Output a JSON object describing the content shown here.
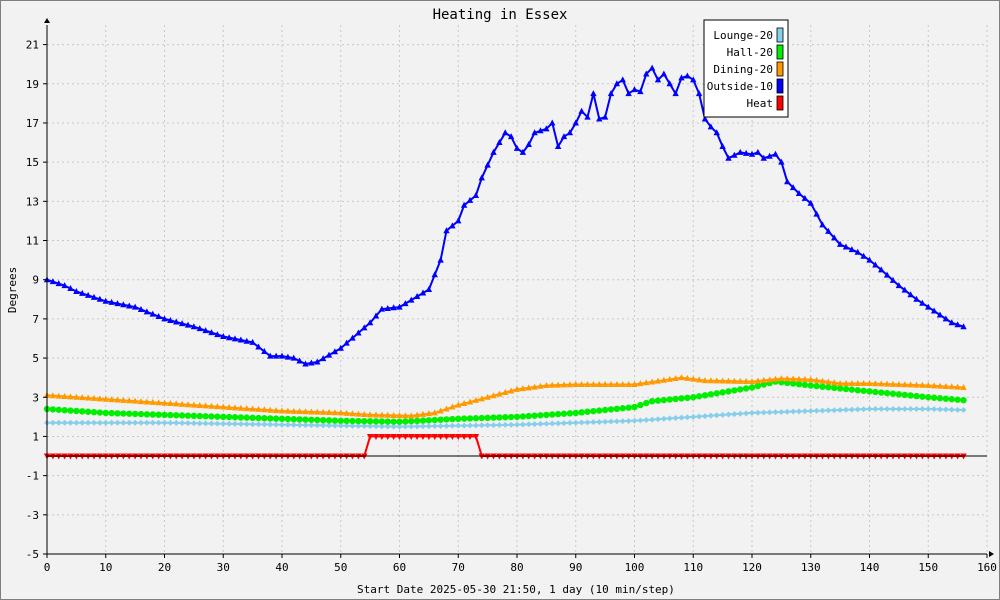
{
  "chart_data": {
    "type": "line",
    "title": "Heating in Essex",
    "xlabel": "Start Date 2025-05-30 21:50, 1 day (10 min/step)",
    "ylabel": "Degrees",
    "xlim": [
      0,
      160
    ],
    "ylim": [
      -5,
      22
    ],
    "x_ticks": [
      0,
      10,
      20,
      30,
      40,
      50,
      60,
      70,
      80,
      90,
      100,
      110,
      120,
      130,
      140,
      150,
      160
    ],
    "y_ticks": [
      -5,
      -3,
      -1,
      1,
      3,
      5,
      7,
      9,
      11,
      13,
      15,
      17,
      19,
      21
    ],
    "grid": true,
    "legend_position": "top-right",
    "series": [
      {
        "name": "Lounge-20",
        "color": "#87ceeb",
        "marker": "diamond",
        "points": [
          [
            0,
            1.7
          ],
          [
            10,
            1.7
          ],
          [
            20,
            1.7
          ],
          [
            30,
            1.65
          ],
          [
            40,
            1.6
          ],
          [
            50,
            1.55
          ],
          [
            60,
            1.5
          ],
          [
            70,
            1.55
          ],
          [
            80,
            1.6
          ],
          [
            90,
            1.7
          ],
          [
            100,
            1.8
          ],
          [
            110,
            2.0
          ],
          [
            120,
            2.2
          ],
          [
            130,
            2.3
          ],
          [
            140,
            2.4
          ],
          [
            150,
            2.4
          ],
          [
            156,
            2.35
          ]
        ]
      },
      {
        "name": "Hall-20",
        "color": "#00ee00",
        "marker": "circle",
        "points": [
          [
            0,
            2.4
          ],
          [
            10,
            2.2
          ],
          [
            20,
            2.1
          ],
          [
            30,
            2.0
          ],
          [
            40,
            1.9
          ],
          [
            50,
            1.8
          ],
          [
            60,
            1.75
          ],
          [
            70,
            1.9
          ],
          [
            80,
            2.0
          ],
          [
            90,
            2.2
          ],
          [
            100,
            2.5
          ],
          [
            103,
            2.8
          ],
          [
            110,
            3.0
          ],
          [
            120,
            3.5
          ],
          [
            124,
            3.8
          ],
          [
            130,
            3.6
          ],
          [
            140,
            3.3
          ],
          [
            150,
            3.0
          ],
          [
            156,
            2.85
          ]
        ]
      },
      {
        "name": "Dining-20",
        "color": "#ff9900",
        "marker": "triangle",
        "points": [
          [
            0,
            3.1
          ],
          [
            10,
            2.9
          ],
          [
            20,
            2.7
          ],
          [
            30,
            2.5
          ],
          [
            40,
            2.3
          ],
          [
            50,
            2.2
          ],
          [
            55,
            2.1
          ],
          [
            62,
            2.05
          ],
          [
            66,
            2.2
          ],
          [
            70,
            2.6
          ],
          [
            75,
            3.0
          ],
          [
            80,
            3.4
          ],
          [
            85,
            3.6
          ],
          [
            90,
            3.65
          ],
          [
            100,
            3.65
          ],
          [
            108,
            4.0
          ],
          [
            112,
            3.85
          ],
          [
            120,
            3.8
          ],
          [
            125,
            3.95
          ],
          [
            130,
            3.9
          ],
          [
            135,
            3.7
          ],
          [
            140,
            3.7
          ],
          [
            150,
            3.6
          ],
          [
            156,
            3.5
          ]
        ]
      },
      {
        "name": "Outside-10",
        "color": "#0000ff",
        "marker": "triangle",
        "points": [
          [
            0,
            9.0
          ],
          [
            3,
            8.7
          ],
          [
            5,
            8.4
          ],
          [
            10,
            7.9
          ],
          [
            15,
            7.6
          ],
          [
            20,
            7.0
          ],
          [
            25,
            6.6
          ],
          [
            30,
            6.1
          ],
          [
            35,
            5.8
          ],
          [
            38,
            5.1
          ],
          [
            40,
            5.1
          ],
          [
            42,
            5.0
          ],
          [
            44,
            4.7
          ],
          [
            46,
            4.8
          ],
          [
            50,
            5.5
          ],
          [
            55,
            6.8
          ],
          [
            57,
            7.5
          ],
          [
            60,
            7.6
          ],
          [
            65,
            8.5
          ],
          [
            67,
            10.0
          ],
          [
            68,
            11.5
          ],
          [
            70,
            12.0
          ],
          [
            71,
            12.8
          ],
          [
            73,
            13.3
          ],
          [
            74,
            14.2
          ],
          [
            76,
            15.5
          ],
          [
            78,
            16.5
          ],
          [
            79,
            16.3
          ],
          [
            80,
            15.7
          ],
          [
            81,
            15.5
          ],
          [
            82,
            15.9
          ],
          [
            83,
            16.5
          ],
          [
            85,
            16.7
          ],
          [
            86,
            17.0
          ],
          [
            87,
            15.8
          ],
          [
            88,
            16.3
          ],
          [
            89,
            16.5
          ],
          [
            90,
            17.0
          ],
          [
            91,
            17.6
          ],
          [
            92,
            17.3
          ],
          [
            93,
            18.5
          ],
          [
            94,
            17.2
          ],
          [
            95,
            17.3
          ],
          [
            96,
            18.5
          ],
          [
            97,
            19.0
          ],
          [
            98,
            19.2
          ],
          [
            99,
            18.5
          ],
          [
            100,
            18.7
          ],
          [
            101,
            18.6
          ],
          [
            102,
            19.5
          ],
          [
            103,
            19.8
          ],
          [
            104,
            19.2
          ],
          [
            105,
            19.5
          ],
          [
            106,
            19.0
          ],
          [
            107,
            18.5
          ],
          [
            108,
            19.3
          ],
          [
            109,
            19.4
          ],
          [
            110,
            19.2
          ],
          [
            111,
            18.5
          ],
          [
            112,
            17.2
          ],
          [
            113,
            16.8
          ],
          [
            114,
            16.5
          ],
          [
            115,
            15.8
          ],
          [
            116,
            15.2
          ],
          [
            118,
            15.5
          ],
          [
            120,
            15.4
          ],
          [
            121,
            15.5
          ],
          [
            122,
            15.2
          ],
          [
            124,
            15.4
          ],
          [
            125,
            15.0
          ],
          [
            126,
            14.0
          ],
          [
            128,
            13.4
          ],
          [
            130,
            12.9
          ],
          [
            132,
            11.8
          ],
          [
            135,
            10.8
          ],
          [
            138,
            10.4
          ],
          [
            140,
            10.0
          ],
          [
            142,
            9.5
          ],
          [
            145,
            8.7
          ],
          [
            148,
            8.0
          ],
          [
            150,
            7.6
          ],
          [
            152,
            7.2
          ],
          [
            154,
            6.8
          ],
          [
            156,
            6.6
          ]
        ]
      },
      {
        "name": "Heat",
        "color": "#ff0000",
        "marker": "triangle-down",
        "points": [
          [
            0,
            0
          ],
          [
            54,
            0
          ],
          [
            55,
            1
          ],
          [
            73,
            1
          ],
          [
            74,
            0
          ],
          [
            156,
            0
          ]
        ]
      }
    ]
  }
}
